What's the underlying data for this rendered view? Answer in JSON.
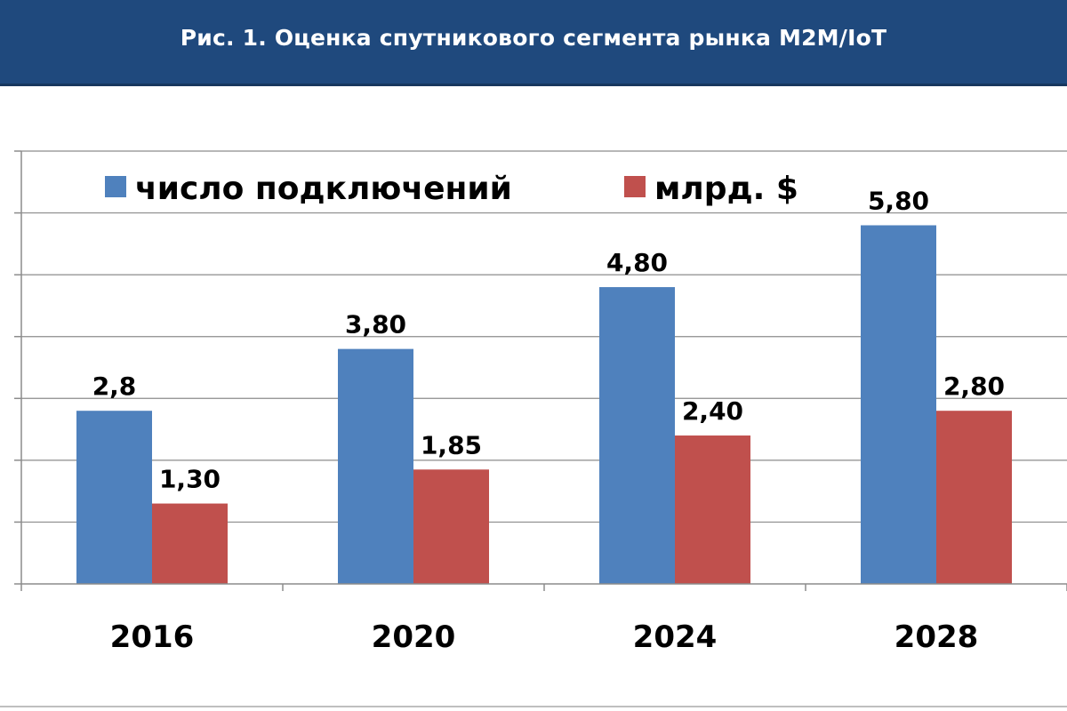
{
  "header": {
    "title": "Рис. 1. Оценка спутникового сегмента рынка M2M/IoT"
  },
  "chart_data": {
    "type": "bar",
    "title": "Рис. 1. Оценка спутникового сегмента рынка M2M/IoT",
    "categories": [
      "2016",
      "2020",
      "2024",
      "2028"
    ],
    "series": [
      {
        "name": "число подключений",
        "color": "#4f81bd",
        "values": [
          2.8,
          3.8,
          4.8,
          5.8
        ],
        "labels": [
          "2,8",
          "3,80",
          "4,80",
          "5,80"
        ]
      },
      {
        "name": "млрд. $",
        "color": "#c0504d",
        "values": [
          1.3,
          1.85,
          2.4,
          2.8
        ],
        "labels": [
          "1,30",
          "1,85",
          "2,40",
          "2,80"
        ]
      }
    ],
    "ylim": [
      0,
      7
    ],
    "gridlines": true,
    "legend": "top"
  }
}
